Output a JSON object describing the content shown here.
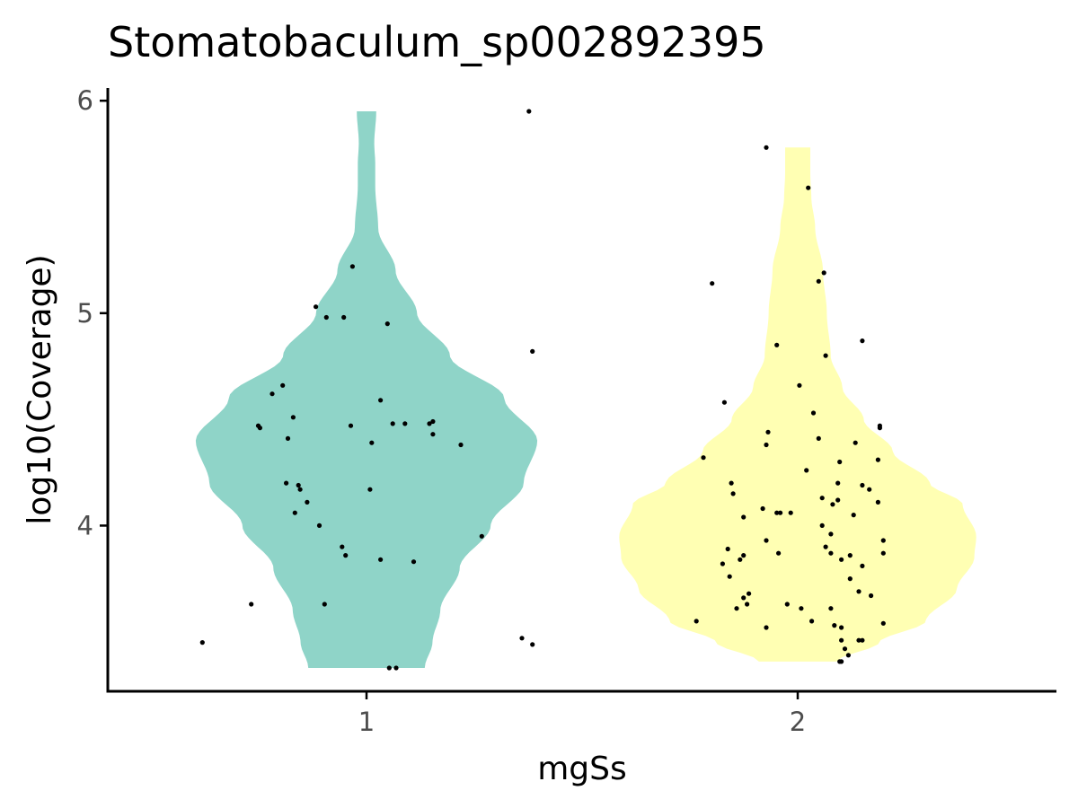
{
  "chart_data": {
    "type": "violin",
    "title": "Stomatobaculum_sp002892395",
    "xlabel": "mgSs",
    "ylabel": "log10(Coverage)",
    "categories": [
      "1",
      "2"
    ],
    "y_ticks": [
      "4",
      "5",
      "6"
    ],
    "ylim": [
      3.22,
      6.06
    ],
    "colors": {
      "1": "#8fd4c8",
      "2": "#ffffb3",
      "points": "#000000"
    },
    "grid": false,
    "legend": "none",
    "violins": [
      {
        "group": "1",
        "min": 3.33,
        "max": 5.95,
        "profile": [
          [
            3.33,
            0.3
          ],
          [
            3.45,
            0.34
          ],
          [
            3.6,
            0.38
          ],
          [
            3.8,
            0.48
          ],
          [
            4.0,
            0.64
          ],
          [
            4.2,
            0.81
          ],
          [
            4.4,
            0.88
          ],
          [
            4.6,
            0.71
          ],
          [
            4.8,
            0.43
          ],
          [
            5.0,
            0.26
          ],
          [
            5.2,
            0.15
          ],
          [
            5.4,
            0.06
          ],
          [
            5.6,
            0.045
          ],
          [
            5.7,
            0.045
          ],
          [
            5.8,
            0.04
          ],
          [
            5.95,
            0.05
          ]
        ],
        "points": [
          [
            0.93,
            5.95
          ],
          [
            -0.08,
            5.22
          ],
          [
            -0.29,
            5.03
          ],
          [
            -0.23,
            4.98
          ],
          [
            -0.13,
            4.98
          ],
          [
            0.12,
            4.95
          ],
          [
            0.95,
            4.82
          ],
          [
            -0.54,
            4.62
          ],
          [
            -0.48,
            4.66
          ],
          [
            0.08,
            4.59
          ],
          [
            -0.62,
            4.47
          ],
          [
            -0.61,
            4.46
          ],
          [
            -0.42,
            4.51
          ],
          [
            -0.09,
            4.47
          ],
          [
            0.15,
            4.48
          ],
          [
            0.22,
            4.48
          ],
          [
            0.36,
            4.48
          ],
          [
            0.38,
            4.49
          ],
          [
            0.38,
            4.43
          ],
          [
            0.54,
            4.38
          ],
          [
            -0.45,
            4.41
          ],
          [
            0.03,
            4.39
          ],
          [
            -0.46,
            4.2
          ],
          [
            -0.39,
            4.19
          ],
          [
            -0.38,
            4.17
          ],
          [
            0.02,
            4.17
          ],
          [
            -0.41,
            4.06
          ],
          [
            -0.34,
            4.11
          ],
          [
            -0.27,
            4.0
          ],
          [
            -0.14,
            3.9
          ],
          [
            -0.12,
            3.86
          ],
          [
            0.08,
            3.84
          ],
          [
            0.27,
            3.83
          ],
          [
            0.66,
            3.95
          ],
          [
            -0.66,
            3.63
          ],
          [
            -0.24,
            3.63
          ],
          [
            -0.94,
            3.45
          ],
          [
            0.89,
            3.47
          ],
          [
            0.95,
            3.44
          ],
          [
            0.13,
            3.33
          ],
          [
            0.17,
            3.33
          ]
        ]
      },
      {
        "group": "2",
        "min": 3.36,
        "max": 5.78,
        "profile": [
          [
            3.36,
            0.2
          ],
          [
            3.45,
            0.42
          ],
          [
            3.55,
            0.66
          ],
          [
            3.7,
            0.82
          ],
          [
            3.85,
            0.91
          ],
          [
            3.95,
            0.92
          ],
          [
            4.1,
            0.85
          ],
          [
            4.2,
            0.68
          ],
          [
            4.35,
            0.49
          ],
          [
            4.5,
            0.34
          ],
          [
            4.65,
            0.23
          ],
          [
            4.8,
            0.17
          ],
          [
            5.0,
            0.15
          ],
          [
            5.2,
            0.13
          ],
          [
            5.4,
            0.09
          ],
          [
            5.55,
            0.07
          ],
          [
            5.65,
            0.065
          ],
          [
            5.78,
            0.065
          ]
        ],
        "points": [
          [
            -0.18,
            5.78
          ],
          [
            0.06,
            5.59
          ],
          [
            -0.49,
            5.14
          ],
          [
            0.12,
            5.15
          ],
          [
            0.15,
            5.19
          ],
          [
            -0.12,
            4.85
          ],
          [
            0.16,
            4.8
          ],
          [
            0.37,
            4.87
          ],
          [
            -0.42,
            4.58
          ],
          [
            0.01,
            4.66
          ],
          [
            -0.17,
            4.44
          ],
          [
            0.09,
            4.53
          ],
          [
            0.47,
            4.47
          ],
          [
            0.47,
            4.46
          ],
          [
            -0.18,
            4.38
          ],
          [
            0.12,
            4.41
          ],
          [
            0.33,
            4.39
          ],
          [
            -0.54,
            4.32
          ],
          [
            -0.38,
            4.2
          ],
          [
            0.05,
            4.26
          ],
          [
            0.24,
            4.3
          ],
          [
            -0.37,
            4.15
          ],
          [
            0.23,
            4.2
          ],
          [
            0.37,
            4.19
          ],
          [
            0.41,
            4.17
          ],
          [
            0.46,
            4.31
          ],
          [
            -0.2,
            4.08
          ],
          [
            -0.1,
            4.06
          ],
          [
            -0.04,
            4.06
          ],
          [
            0.2,
            4.1
          ],
          [
            0.14,
            4.13
          ],
          [
            0.23,
            4.12
          ],
          [
            -0.12,
            4.06
          ],
          [
            0.32,
            4.05
          ],
          [
            0.46,
            4.11
          ],
          [
            -0.31,
            4.04
          ],
          [
            0.14,
            4.0
          ],
          [
            -0.4,
            3.89
          ],
          [
            -0.18,
            3.93
          ],
          [
            0.19,
            3.96
          ],
          [
            0.49,
            3.93
          ],
          [
            -0.43,
            3.82
          ],
          [
            -0.33,
            3.84
          ],
          [
            -0.31,
            3.86
          ],
          [
            -0.11,
            3.87
          ],
          [
            0.16,
            3.9
          ],
          [
            0.19,
            3.87
          ],
          [
            0.3,
            3.86
          ],
          [
            0.25,
            3.84
          ],
          [
            0.37,
            3.81
          ],
          [
            0.49,
            3.87
          ],
          [
            -0.39,
            3.76
          ],
          [
            -0.31,
            3.66
          ],
          [
            -0.28,
            3.68
          ],
          [
            0.3,
            3.75
          ],
          [
            -0.29,
            3.63
          ],
          [
            0.35,
            3.69
          ],
          [
            0.42,
            3.67
          ],
          [
            -0.35,
            3.61
          ],
          [
            -0.06,
            3.63
          ],
          [
            0.02,
            3.61
          ],
          [
            0.19,
            3.61
          ],
          [
            -0.58,
            3.55
          ],
          [
            -0.18,
            3.52
          ],
          [
            0.08,
            3.55
          ],
          [
            0.21,
            3.53
          ],
          [
            0.25,
            3.52
          ],
          [
            0.49,
            3.54
          ],
          [
            0.25,
            3.46
          ],
          [
            0.35,
            3.46
          ],
          [
            0.37,
            3.46
          ],
          [
            0.27,
            3.42
          ],
          [
            0.29,
            3.39
          ],
          [
            0.24,
            3.36
          ],
          [
            0.25,
            3.36
          ]
        ]
      }
    ]
  }
}
